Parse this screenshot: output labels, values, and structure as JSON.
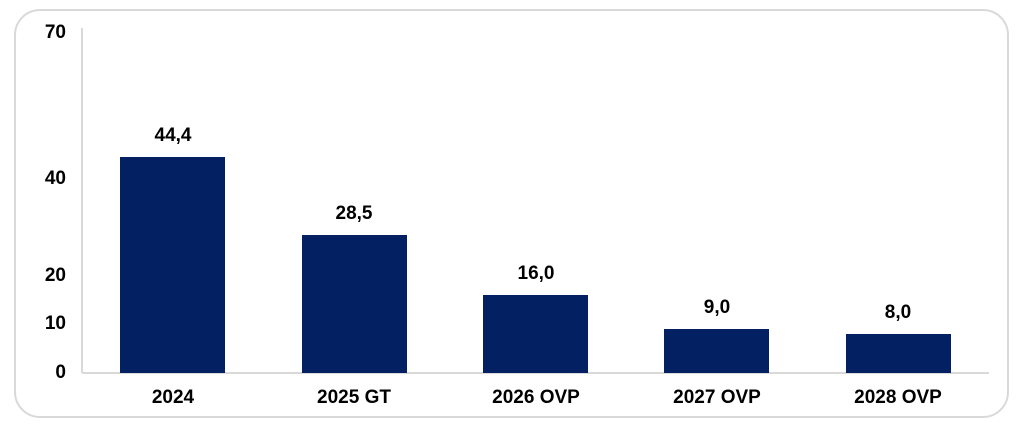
{
  "chart_data": {
    "type": "bar",
    "categories": [
      "2024",
      "2025 GT",
      "2026 OVP",
      "2027 OVP",
      "2028 OVP"
    ],
    "values": [
      44.4,
      28.5,
      16.0,
      9.0,
      8.0
    ],
    "value_labels": [
      "44,4",
      "28,5",
      "16,0",
      "9,0",
      "8,0"
    ],
    "title": "",
    "xlabel": "",
    "ylabel": "",
    "ylim": [
      0,
      70
    ],
    "yticks": [
      0,
      10,
      20,
      40,
      70
    ],
    "ytick_labels": [
      "0",
      "10",
      "20",
      "40",
      "70"
    ],
    "grid": "off",
    "legend": "none",
    "colors": {
      "bar": "#032062",
      "axis_line": "#d9d9d9",
      "card_border": "#d9d9d9",
      "text": "#000000",
      "background": "#ffffff"
    }
  }
}
